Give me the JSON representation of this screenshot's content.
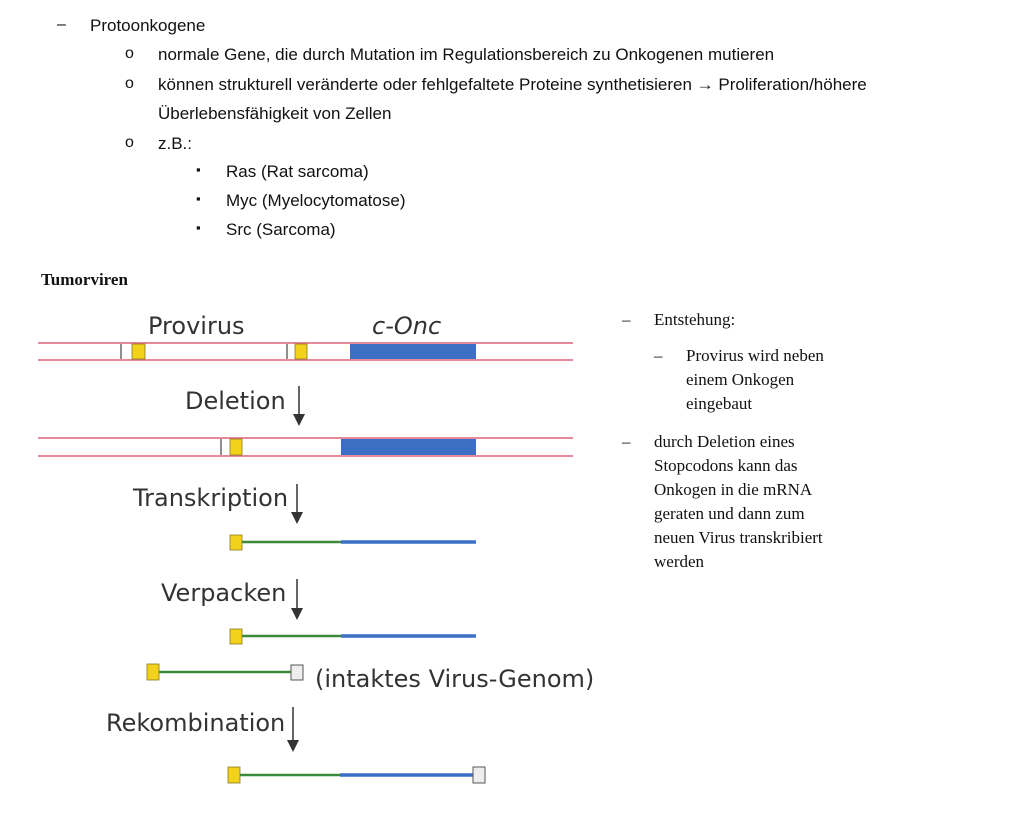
{
  "outline": {
    "level1_marker": "–",
    "level1_text": "Protoonkogene",
    "level2_marker": "o",
    "level3_marker": "▪",
    "item_1": "normale Gene, die durch Mutation im Regulationsbereich zu Onkogenen mutieren",
    "item_2_line1": "können strukturell veränderte oder fehlgefaltete Proteine synthetisieren → Proliferation/höhere",
    "item_2_line2": "Überlebensfähigkeit von Zellen",
    "item_3": "z.B.:",
    "examples": [
      "Ras (Rat sarcoma)",
      "Myc (Myelocytomatose)",
      "Src (Sarcoma)"
    ]
  },
  "figure": {
    "heading": "Tumorviren",
    "label_provirus": "Provirus",
    "label_conc": "c-Onc",
    "step_deletion": "Deletion",
    "step_transkription": "Transkription",
    "step_verpacken": "Verpacken",
    "intact_genome": "(intaktes Virus-Genom)",
    "step_rekombination": "Rekombination",
    "colors": {
      "dna_strand": "#e0607a",
      "onc_blue": "#3a6fc4",
      "rna_green": "#3a8a3a",
      "ltr_yellow": "#f3d21b"
    }
  },
  "notes": {
    "dash": "–",
    "entstehung": "Entstehung:",
    "sub_lines": [
      "Provirus wird neben",
      "einem Onkogen",
      "eingebaut"
    ],
    "deletion_lines": [
      "durch Deletion eines",
      "Stopcodons kann das",
      "Onkogen in die mRNA",
      "geraten und dann zum",
      "neuen Virus transkribiert",
      "werden"
    ]
  }
}
